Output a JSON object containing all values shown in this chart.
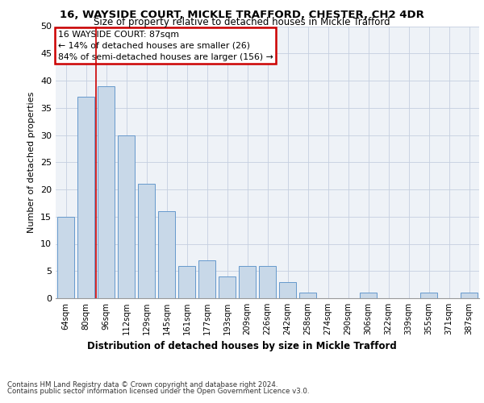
{
  "title": "16, WAYSIDE COURT, MICKLE TRAFFORD, CHESTER, CH2 4DR",
  "subtitle": "Size of property relative to detached houses in Mickle Trafford",
  "xlabel": "Distribution of detached houses by size in Mickle Trafford",
  "ylabel": "Number of detached properties",
  "categories": [
    "64sqm",
    "80sqm",
    "96sqm",
    "112sqm",
    "129sqm",
    "145sqm",
    "161sqm",
    "177sqm",
    "193sqm",
    "209sqm",
    "226sqm",
    "242sqm",
    "258sqm",
    "274sqm",
    "290sqm",
    "306sqm",
    "322sqm",
    "339sqm",
    "355sqm",
    "371sqm",
    "387sqm"
  ],
  "values": [
    15,
    37,
    39,
    30,
    21,
    16,
    6,
    7,
    4,
    6,
    6,
    3,
    1,
    0,
    0,
    1,
    0,
    0,
    1,
    0,
    1
  ],
  "bar_color": "#c8d8e8",
  "bar_edge_color": "#6699cc",
  "ylim": [
    0,
    50
  ],
  "yticks": [
    0,
    5,
    10,
    15,
    20,
    25,
    30,
    35,
    40,
    45,
    50
  ],
  "property_line_x": 1.5,
  "property_sqm": 87,
  "annotation_title": "16 WAYSIDE COURT: 87sqm",
  "annotation_line1": "← 14% of detached houses are smaller (26)",
  "annotation_line2": "84% of semi-detached houses are larger (156) →",
  "annotation_box_color": "#cc0000",
  "vline_color": "#cc0000",
  "footer_line1": "Contains HM Land Registry data © Crown copyright and database right 2024.",
  "footer_line2": "Contains public sector information licensed under the Open Government Licence v3.0.",
  "bg_color": "#eef2f7",
  "grid_color": "#c5cfe0"
}
